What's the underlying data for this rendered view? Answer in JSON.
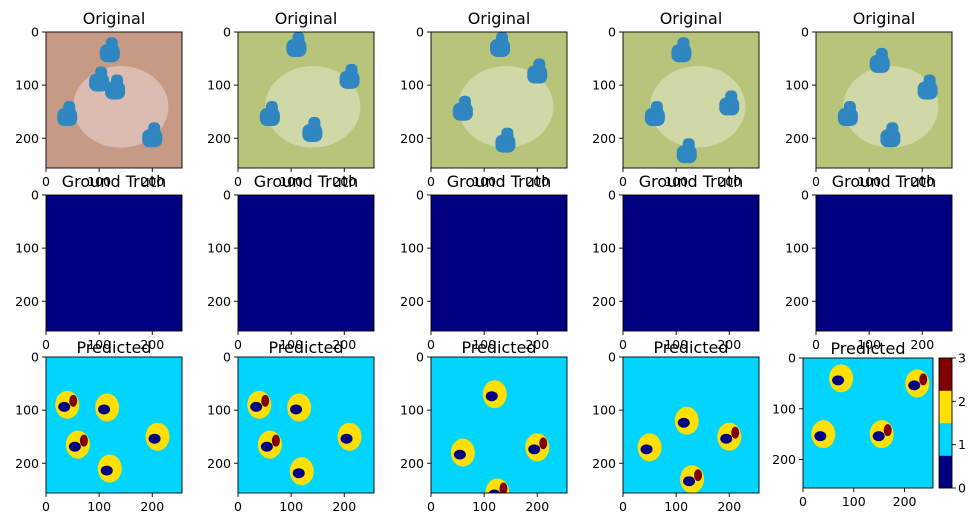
{
  "chart_data": {
    "type": "heatmap",
    "rows": [
      {
        "title": "Original",
        "content": "photo"
      },
      {
        "title": "Ground Truth",
        "content": "mask"
      },
      {
        "title": "Predicted",
        "content": "prediction"
      }
    ],
    "columns": 5,
    "image_size": [
      256,
      256
    ],
    "x_ticks": [
      0,
      100,
      200
    ],
    "y_ticks": [
      0,
      100,
      200
    ],
    "xlim": [
      0,
      256
    ],
    "ylim": [
      256,
      0
    ],
    "colorbar": {
      "ticks": [
        0,
        1,
        2,
        3
      ],
      "range": [
        0,
        3
      ]
    },
    "colors": {
      "class0": "#000080",
      "class1": "#00d5ff",
      "class2": "#ffe000",
      "class3": "#800000",
      "pipe": "#2f86c0",
      "photo_bg_first": "#c79a86",
      "photo_bg": "#b7c47a"
    },
    "ground_truth_value": 0
  }
}
